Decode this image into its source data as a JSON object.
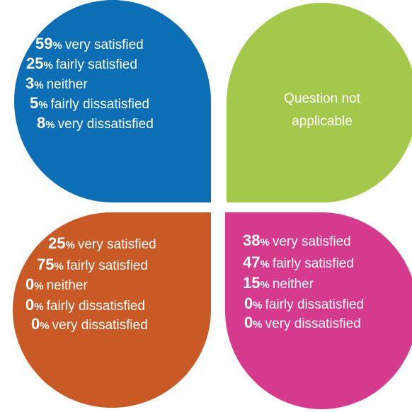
{
  "panels": [
    {
      "items": [
        {
          "value": 59,
          "unit": "%",
          "label": "very satisfied"
        },
        {
          "value": 25,
          "unit": "%",
          "label": "fairly satisfied"
        },
        {
          "value": 3,
          "unit": "%",
          "label": "neither"
        },
        {
          "value": 5,
          "unit": "%",
          "label": "fairly dissatisfied"
        },
        {
          "value": 8,
          "unit": "%",
          "label": "very dissatisfied"
        }
      ]
    },
    {
      "text": [
        "Question not",
        "applicable"
      ]
    },
    {
      "items": [
        {
          "value": 25,
          "unit": "%",
          "label": "very satisfied"
        },
        {
          "value": 75,
          "unit": "%",
          "label": "fairly satisfied"
        },
        {
          "value": 0,
          "unit": "%",
          "label": "neither"
        },
        {
          "value": 0,
          "unit": "%",
          "label": "fairly dissatisfied"
        },
        {
          "value": 0,
          "unit": "%",
          "label": "very dissatisfied"
        }
      ]
    },
    {
      "items": [
        {
          "value": 38,
          "unit": "%",
          "label": "very satisfied"
        },
        {
          "value": 47,
          "unit": "%",
          "label": "fairly satisfied"
        },
        {
          "value": 15,
          "unit": "%",
          "label": "neither"
        },
        {
          "value": 0,
          "unit": "%",
          "label": "fairly dissatisfied"
        },
        {
          "value": 0,
          "unit": "%",
          "label": "very dissatisfied"
        }
      ]
    }
  ]
}
